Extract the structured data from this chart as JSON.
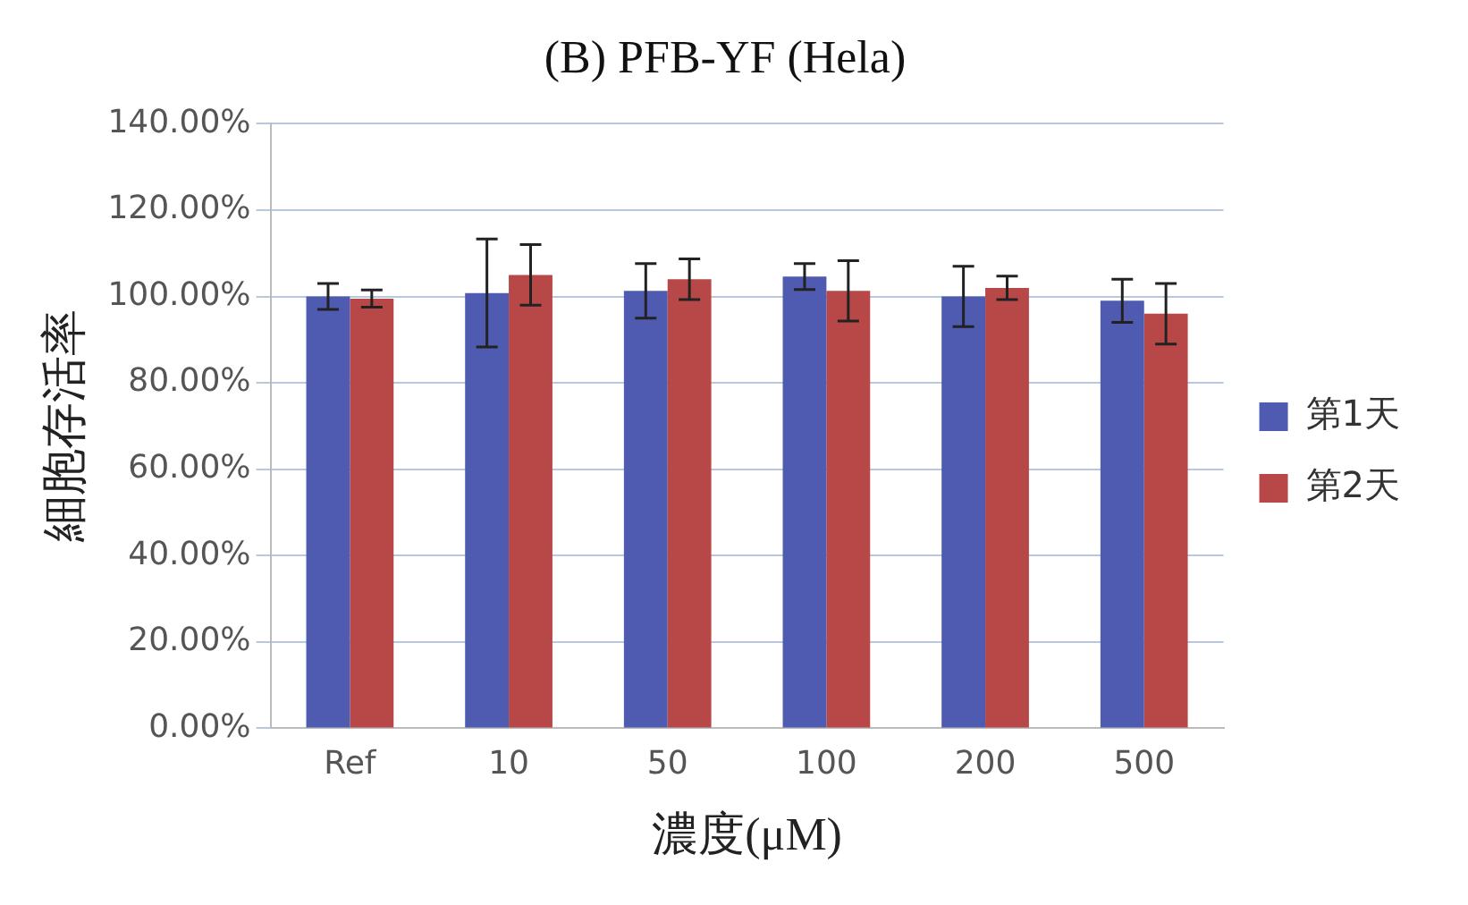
{
  "chart_data": {
    "type": "bar",
    "title": "(B) PFB-YF (Hela)",
    "xlabel": "濃度(μM)",
    "ylabel": "細胞存活率",
    "categories": [
      "Ref",
      "10",
      "50",
      "100",
      "200",
      "500"
    ],
    "series": [
      {
        "name": "第1天",
        "color": "#4f5bb0",
        "values": [
          100,
          100.8,
          101.3,
          104.6,
          100,
          99
        ],
        "errors": [
          3,
          12.5,
          6.3,
          3,
          7,
          5
        ]
      },
      {
        "name": "第2天",
        "color": "#b84848",
        "values": [
          99.5,
          105,
          104,
          101.3,
          102,
          96
        ],
        "errors": [
          2,
          7,
          4.7,
          7,
          2.7,
          7
        ]
      }
    ],
    "ylim": [
      0,
      140
    ],
    "yticks": [
      {
        "value": 0,
        "label": "0.00%"
      },
      {
        "value": 20,
        "label": "20.00%"
      },
      {
        "value": 40,
        "label": "40.00%"
      },
      {
        "value": 60,
        "label": "60.00%"
      },
      {
        "value": 80,
        "label": "80.00%"
      },
      {
        "value": 100,
        "label": "100.00%"
      },
      {
        "value": 120,
        "label": "120.00%"
      },
      {
        "value": 140,
        "label": "140.00%"
      }
    ],
    "grid": "y",
    "legend": "right"
  }
}
